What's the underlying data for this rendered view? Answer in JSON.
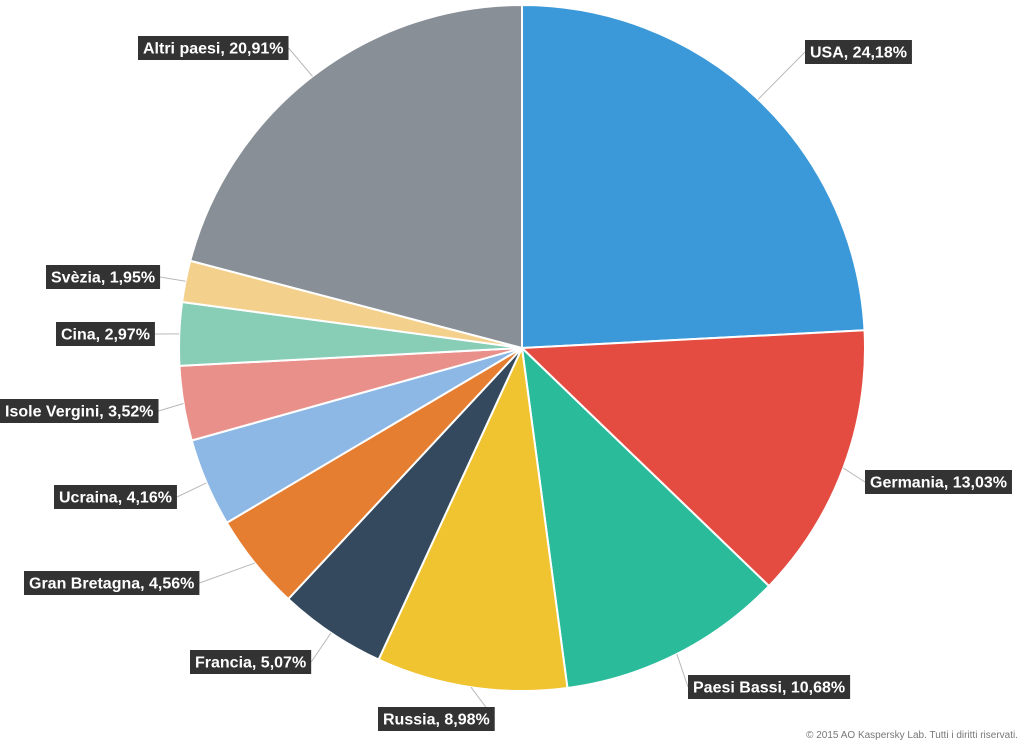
{
  "chart_data": {
    "type": "pie",
    "start_angle_deg": 0,
    "direction": "clockwise",
    "slices": [
      {
        "label": "USA, 24,18%",
        "value": 24.18,
        "color": "#3b99d9"
      },
      {
        "label": "Germania, 13,03%",
        "value": 13.03,
        "color": "#e44c41"
      },
      {
        "label": "Paesi Bassi, 10,68%",
        "value": 10.68,
        "color": "#2abc9a"
      },
      {
        "label": "Russia, 8,98%",
        "value": 8.98,
        "color": "#f0c330"
      },
      {
        "label": "Francia, 5,07%",
        "value": 5.07,
        "color": "#34495d"
      },
      {
        "label": "Gran Bretagna, 4,56%",
        "value": 4.56,
        "color": "#e57e31"
      },
      {
        "label": "Ucraina, 4,16%",
        "value": 4.16,
        "color": "#8db8e5"
      },
      {
        "label": "Isole Vergini, 3,52%",
        "value": 3.52,
        "color": "#ea908b"
      },
      {
        "label": "Cina, 2,97%",
        "value": 2.97,
        "color": "#88ceb6"
      },
      {
        "label": "Svèzia, 1,95%",
        "value": 1.95,
        "color": "#f3d08c"
      },
      {
        "label": "Altri paesi, 20,91%",
        "value": 20.91,
        "color": "#888f96"
      }
    ]
  },
  "footer": {
    "copyright": "© 2015 AO Kaspersky Lab. Tutti i diritti riservati."
  }
}
